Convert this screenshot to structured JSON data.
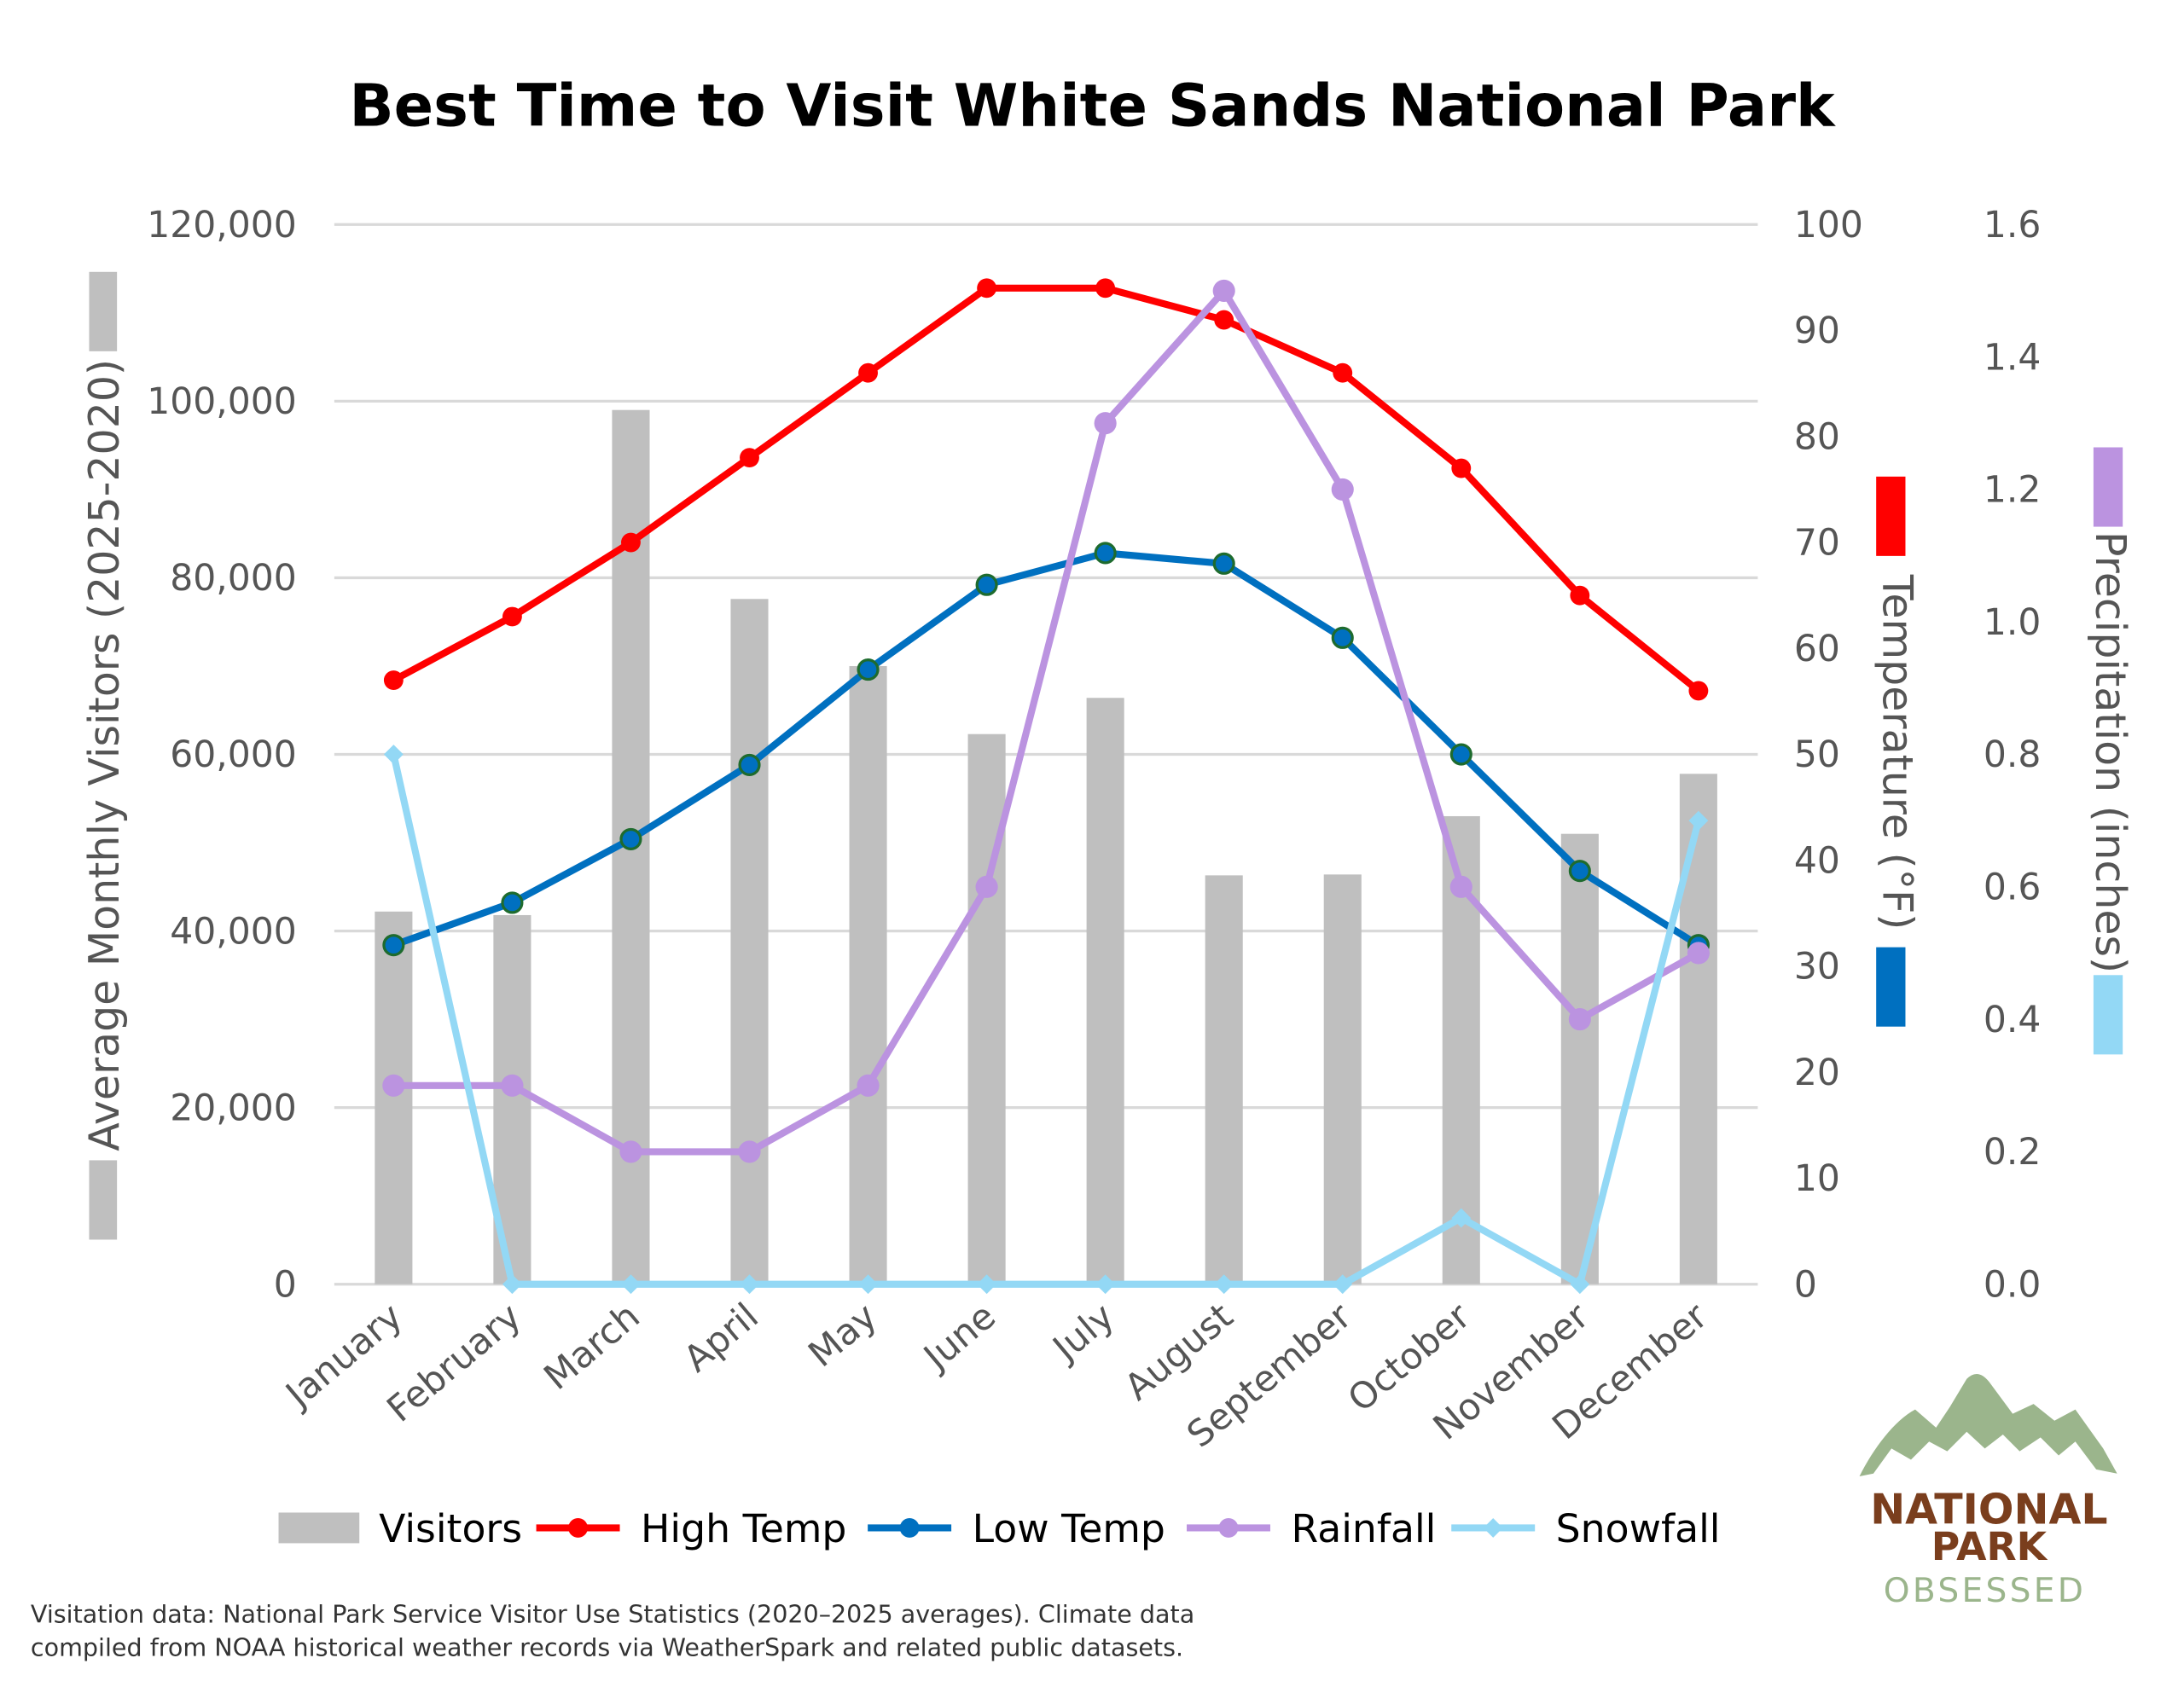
{
  "chart_data": {
    "type": "bar+line",
    "title": "Best Time to Visit White Sands National Park",
    "categories": [
      "January",
      "February",
      "March",
      "April",
      "May",
      "June",
      "July",
      "August",
      "September",
      "October",
      "November",
      "December"
    ],
    "axes": {
      "left": {
        "label": "Average Monthly Visitors (2025-2020)",
        "range": [
          0,
          120000
        ],
        "ticks": [
          "0",
          "20,000",
          "40,000",
          "60,000",
          "80,000",
          "100,000",
          "120,000"
        ]
      },
      "right1": {
        "label": "Temperature (°F)",
        "range": [
          0,
          100
        ],
        "ticks": [
          "0",
          "10",
          "20",
          "30",
          "40",
          "50",
          "60",
          "70",
          "80",
          "90",
          "100"
        ]
      },
      "right2": {
        "label": "Precipitation (inches)",
        "range": [
          0,
          1.6
        ],
        "ticks": [
          "0.0",
          "0.2",
          "0.4",
          "0.6",
          "0.8",
          "1.0",
          "1.2",
          "1.4",
          "1.6"
        ]
      }
    },
    "grid": true,
    "legend_position": "bottom",
    "series": [
      {
        "name": "Visitors",
        "type": "bar",
        "axis": "left",
        "color": "#bfbfbf",
        "values": [
          42200,
          41800,
          99000,
          77600,
          70000,
          62300,
          66400,
          46300,
          46400,
          53000,
          51000,
          57800
        ]
      },
      {
        "name": "High Temp",
        "type": "line",
        "axis": "right1",
        "color": "#ff0000",
        "values": [
          57,
          63,
          70,
          78,
          86,
          94,
          94,
          91,
          86,
          77,
          65,
          56
        ]
      },
      {
        "name": "Low Temp",
        "type": "line",
        "axis": "right1",
        "color": "#0070c0",
        "values": [
          32,
          36,
          42,
          49,
          58,
          66,
          69,
          68,
          61,
          50,
          39,
          32
        ]
      },
      {
        "name": "Rainfall",
        "type": "line",
        "axis": "right2",
        "color": "#bb93e0",
        "values": [
          0.3,
          0.3,
          0.2,
          0.2,
          0.3,
          0.6,
          1.3,
          1.5,
          1.2,
          0.6,
          0.4,
          0.5
        ]
      },
      {
        "name": "Snowfall",
        "type": "line",
        "axis": "right2",
        "color": "#93d8f5",
        "values": [
          0.8,
          0,
          0,
          0,
          0,
          0,
          0,
          0,
          0,
          0.1,
          0,
          0.7
        ]
      }
    ],
    "footnote": [
      "Visitation data: National Park Service Visitor Use Statistics (2020–2025 averages). Climate data",
      "compiled from NOAA historical weather records via WeatherSpark and related public datasets."
    ]
  },
  "logo": {
    "line1": "NATIONAL",
    "line2": "PARK",
    "line3": "OBSESSED",
    "mountain_color": "#9bb58c",
    "text_color": "#7a3e1d"
  }
}
